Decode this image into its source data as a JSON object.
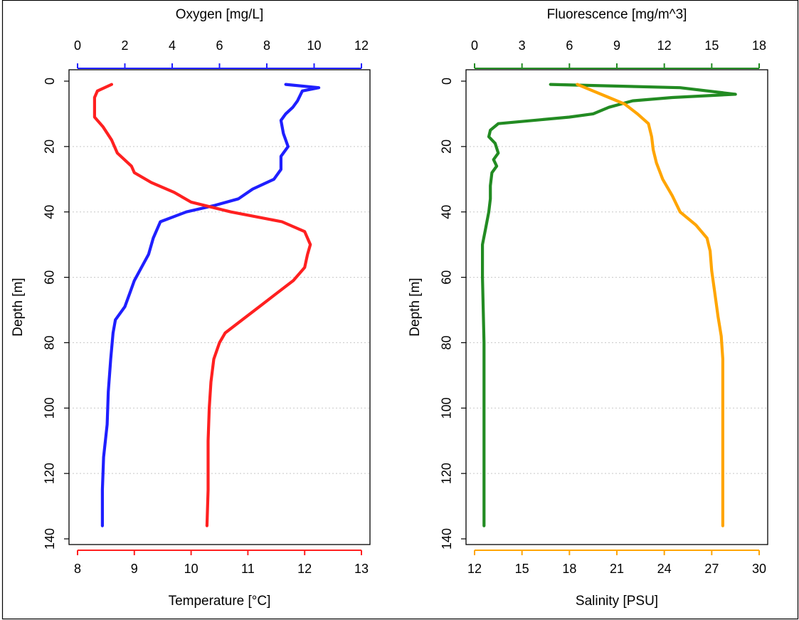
{
  "chart_data": [
    {
      "type": "line",
      "panel": "left",
      "ylabel": "Depth [m]",
      "ylim": [
        140,
        0
      ],
      "yticks": [
        0,
        20,
        40,
        60,
        80,
        100,
        120,
        140
      ],
      "grid": "horizontal dotted",
      "top_axis": {
        "label": "Oxygen [mg/L]",
        "range": [
          0,
          12
        ],
        "ticks": [
          0,
          2,
          4,
          6,
          8,
          10,
          12
        ],
        "color": "#1f1fff"
      },
      "bottom_axis": {
        "label": "Temperature [°C]",
        "range": [
          8,
          13
        ],
        "ticks": [
          8,
          9,
          10,
          11,
          12,
          13
        ],
        "color": "#ff2020"
      },
      "series": [
        {
          "axis": "top",
          "color": "#1f1fff",
          "points": [
            [
              8.8,
              1
            ],
            [
              10.2,
              2
            ],
            [
              9.5,
              3
            ],
            [
              9.3,
              6
            ],
            [
              9.1,
              8
            ],
            [
              8.8,
              10
            ],
            [
              8.6,
              12
            ],
            [
              8.7,
              16
            ],
            [
              8.9,
              20
            ],
            [
              8.6,
              23
            ],
            [
              8.6,
              25
            ],
            [
              8.6,
              27
            ],
            [
              8.3,
              30
            ],
            [
              7.4,
              33
            ],
            [
              6.8,
              36
            ],
            [
              5.8,
              38
            ],
            [
              4.6,
              40
            ],
            [
              3.5,
              43
            ],
            [
              3.2,
              48
            ],
            [
              3.0,
              53
            ],
            [
              2.7,
              57
            ],
            [
              2.4,
              61
            ],
            [
              2.2,
              65
            ],
            [
              2.0,
              69
            ],
            [
              1.6,
              73
            ],
            [
              1.5,
              77
            ],
            [
              1.4,
              85
            ],
            [
              1.3,
              95
            ],
            [
              1.25,
              105
            ],
            [
              1.1,
              115
            ],
            [
              1.05,
              125
            ],
            [
              1.05,
              136
            ]
          ]
        },
        {
          "axis": "bottom",
          "color": "#ff2020",
          "points": [
            [
              8.6,
              1
            ],
            [
              8.35,
              3
            ],
            [
              8.3,
              5
            ],
            [
              8.3,
              8
            ],
            [
              8.3,
              11
            ],
            [
              8.45,
              14
            ],
            [
              8.6,
              18
            ],
            [
              8.7,
              22
            ],
            [
              8.95,
              26
            ],
            [
              9.0,
              28
            ],
            [
              9.3,
              31
            ],
            [
              9.7,
              34
            ],
            [
              10.0,
              37
            ],
            [
              10.7,
              40
            ],
            [
              11.6,
              43
            ],
            [
              12.0,
              46
            ],
            [
              12.1,
              50
            ],
            [
              12.05,
              53
            ],
            [
              12.0,
              57
            ],
            [
              11.8,
              61
            ],
            [
              11.5,
              65
            ],
            [
              11.2,
              69
            ],
            [
              10.9,
              73
            ],
            [
              10.6,
              77
            ],
            [
              10.5,
              80
            ],
            [
              10.4,
              85
            ],
            [
              10.35,
              92
            ],
            [
              10.32,
              100
            ],
            [
              10.3,
              110
            ],
            [
              10.3,
              125
            ],
            [
              10.28,
              136
            ]
          ]
        }
      ]
    },
    {
      "type": "line",
      "panel": "right",
      "ylabel": "Depth [m]",
      "ylim": [
        140,
        0
      ],
      "yticks": [
        0,
        20,
        40,
        60,
        80,
        100,
        120,
        140
      ],
      "grid": "horizontal dotted",
      "top_axis": {
        "label": "Fluorescence [mg/m^3]",
        "range": [
          0,
          18
        ],
        "ticks": [
          0,
          3,
          6,
          9,
          12,
          15,
          18
        ],
        "color": "#228b22"
      },
      "bottom_axis": {
        "label": "Salinity [PSU]",
        "range": [
          12,
          30
        ],
        "ticks": [
          12,
          15,
          18,
          21,
          24,
          27,
          30
        ],
        "color": "#ffa500"
      },
      "series": [
        {
          "axis": "top",
          "color": "#228b22",
          "points": [
            [
              4.8,
              1
            ],
            [
              13.0,
              2
            ],
            [
              16.5,
              4
            ],
            [
              12.5,
              5
            ],
            [
              10.0,
              6
            ],
            [
              8.5,
              8
            ],
            [
              7.5,
              10
            ],
            [
              6.0,
              11
            ],
            [
              1.5,
              13
            ],
            [
              1.0,
              15
            ],
            [
              0.9,
              17
            ],
            [
              1.3,
              19
            ],
            [
              1.5,
              22
            ],
            [
              1.2,
              24
            ],
            [
              1.4,
              26
            ],
            [
              1.1,
              28
            ],
            [
              1.0,
              32
            ],
            [
              1.0,
              36
            ],
            [
              0.9,
              40
            ],
            [
              0.7,
              45
            ],
            [
              0.5,
              50
            ],
            [
              0.5,
              60
            ],
            [
              0.6,
              80
            ],
            [
              0.6,
              100
            ],
            [
              0.6,
              120
            ],
            [
              0.6,
              136
            ]
          ]
        },
        {
          "axis": "bottom",
          "color": "#ffa500",
          "points": [
            [
              18.5,
              1
            ],
            [
              19.5,
              3
            ],
            [
              20.5,
              5
            ],
            [
              21.5,
              7
            ],
            [
              22.3,
              10
            ],
            [
              23.0,
              13
            ],
            [
              23.2,
              17
            ],
            [
              23.3,
              21
            ],
            [
              23.5,
              25
            ],
            [
              23.9,
              30
            ],
            [
              24.5,
              35
            ],
            [
              25.0,
              40
            ],
            [
              26.0,
              44
            ],
            [
              26.7,
              48
            ],
            [
              26.9,
              52
            ],
            [
              27.0,
              58
            ],
            [
              27.2,
              65
            ],
            [
              27.4,
              72
            ],
            [
              27.6,
              78
            ],
            [
              27.7,
              85
            ],
            [
              27.7,
              100
            ],
            [
              27.7,
              120
            ],
            [
              27.7,
              136
            ]
          ]
        }
      ]
    }
  ]
}
